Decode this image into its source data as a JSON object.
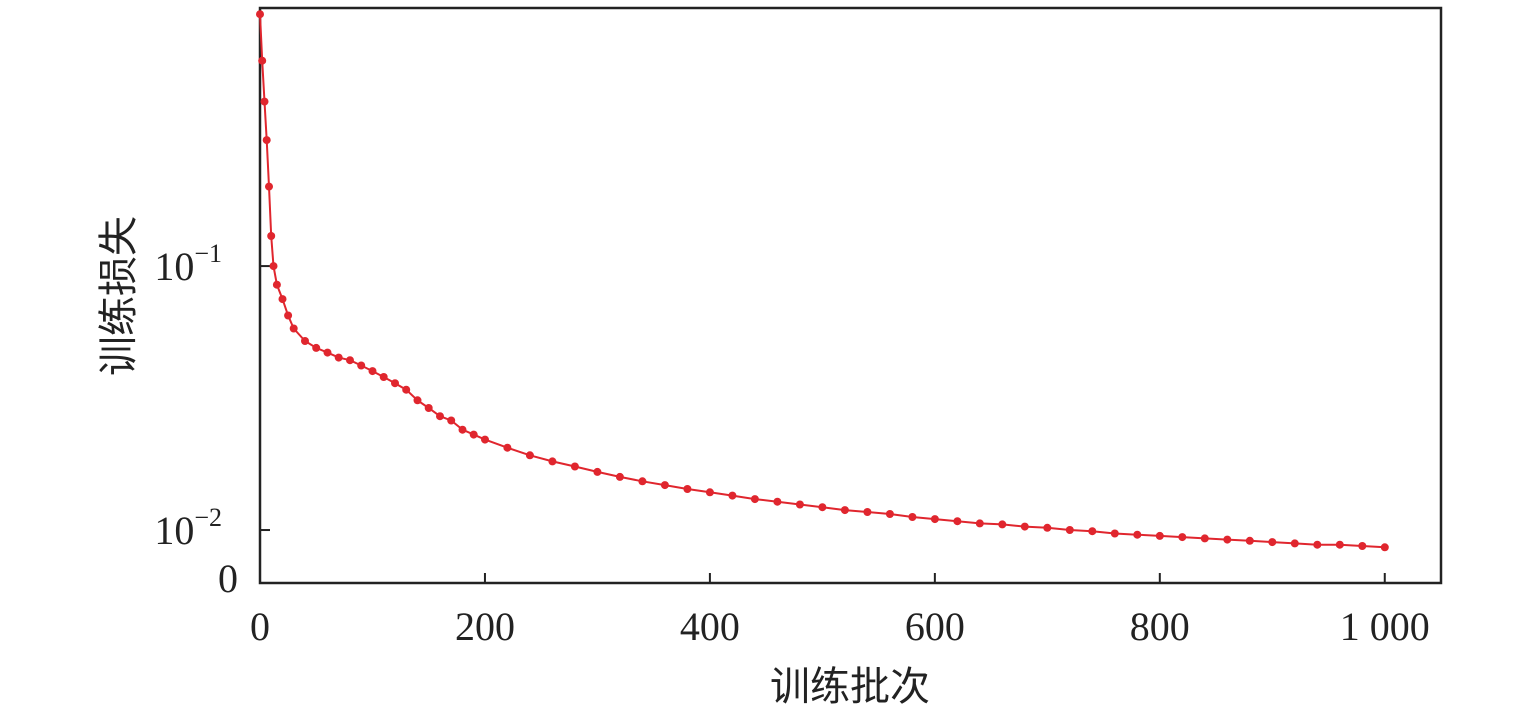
{
  "chart_data": {
    "type": "line",
    "title": "",
    "xlabel": "训练批次",
    "ylabel": "训练损失",
    "xlim": [
      0,
      1050
    ],
    "ylim": [
      0.0063,
      0.95
    ],
    "yscale": "log",
    "grid": false,
    "x_ticks": [
      {
        "value": 0,
        "label": "0"
      },
      {
        "value": 200,
        "label": "200"
      },
      {
        "value": 400,
        "label": "400"
      },
      {
        "value": 600,
        "label": "600"
      },
      {
        "value": 800,
        "label": "800"
      },
      {
        "value": 1000,
        "label": "1 000"
      }
    ],
    "y_ticks": [
      {
        "value": 0.1,
        "base": "10",
        "exp": "−1"
      },
      {
        "value": 0.01,
        "base": "10",
        "exp": "−2"
      }
    ],
    "y_origin_label": "0",
    "series": [
      {
        "color": "#e0262e",
        "marker": "circle",
        "x": [
          0,
          2,
          4,
          6,
          8,
          10,
          12,
          15,
          20,
          25,
          30,
          40,
          50,
          60,
          70,
          80,
          90,
          100,
          110,
          120,
          130,
          140,
          150,
          160,
          170,
          180,
          190,
          200,
          220,
          240,
          260,
          280,
          300,
          320,
          340,
          360,
          380,
          400,
          420,
          440,
          460,
          480,
          500,
          520,
          540,
          560,
          580,
          600,
          620,
          640,
          660,
          680,
          700,
          720,
          740,
          760,
          780,
          800,
          820,
          840,
          860,
          880,
          900,
          920,
          940,
          960,
          980,
          1000
        ],
        "y": [
          0.9,
          0.6,
          0.42,
          0.3,
          0.2,
          0.13,
          0.1,
          0.085,
          0.075,
          0.065,
          0.058,
          0.052,
          0.049,
          0.047,
          0.045,
          0.044,
          0.042,
          0.04,
          0.038,
          0.036,
          0.034,
          0.031,
          0.029,
          0.027,
          0.026,
          0.024,
          0.023,
          0.022,
          0.0205,
          0.0192,
          0.0182,
          0.0174,
          0.0166,
          0.0159,
          0.0153,
          0.0148,
          0.0143,
          0.0139,
          0.0135,
          0.0131,
          0.0128,
          0.0125,
          0.0122,
          0.0119,
          0.0117,
          0.0115,
          0.0112,
          0.011,
          0.0108,
          0.0106,
          0.0105,
          0.0103,
          0.0102,
          0.01,
          0.0099,
          0.0097,
          0.0096,
          0.0095,
          0.0094,
          0.0093,
          0.0092,
          0.0091,
          0.009,
          0.0089,
          0.0088,
          0.0088,
          0.0087,
          0.0086
        ]
      }
    ]
  }
}
